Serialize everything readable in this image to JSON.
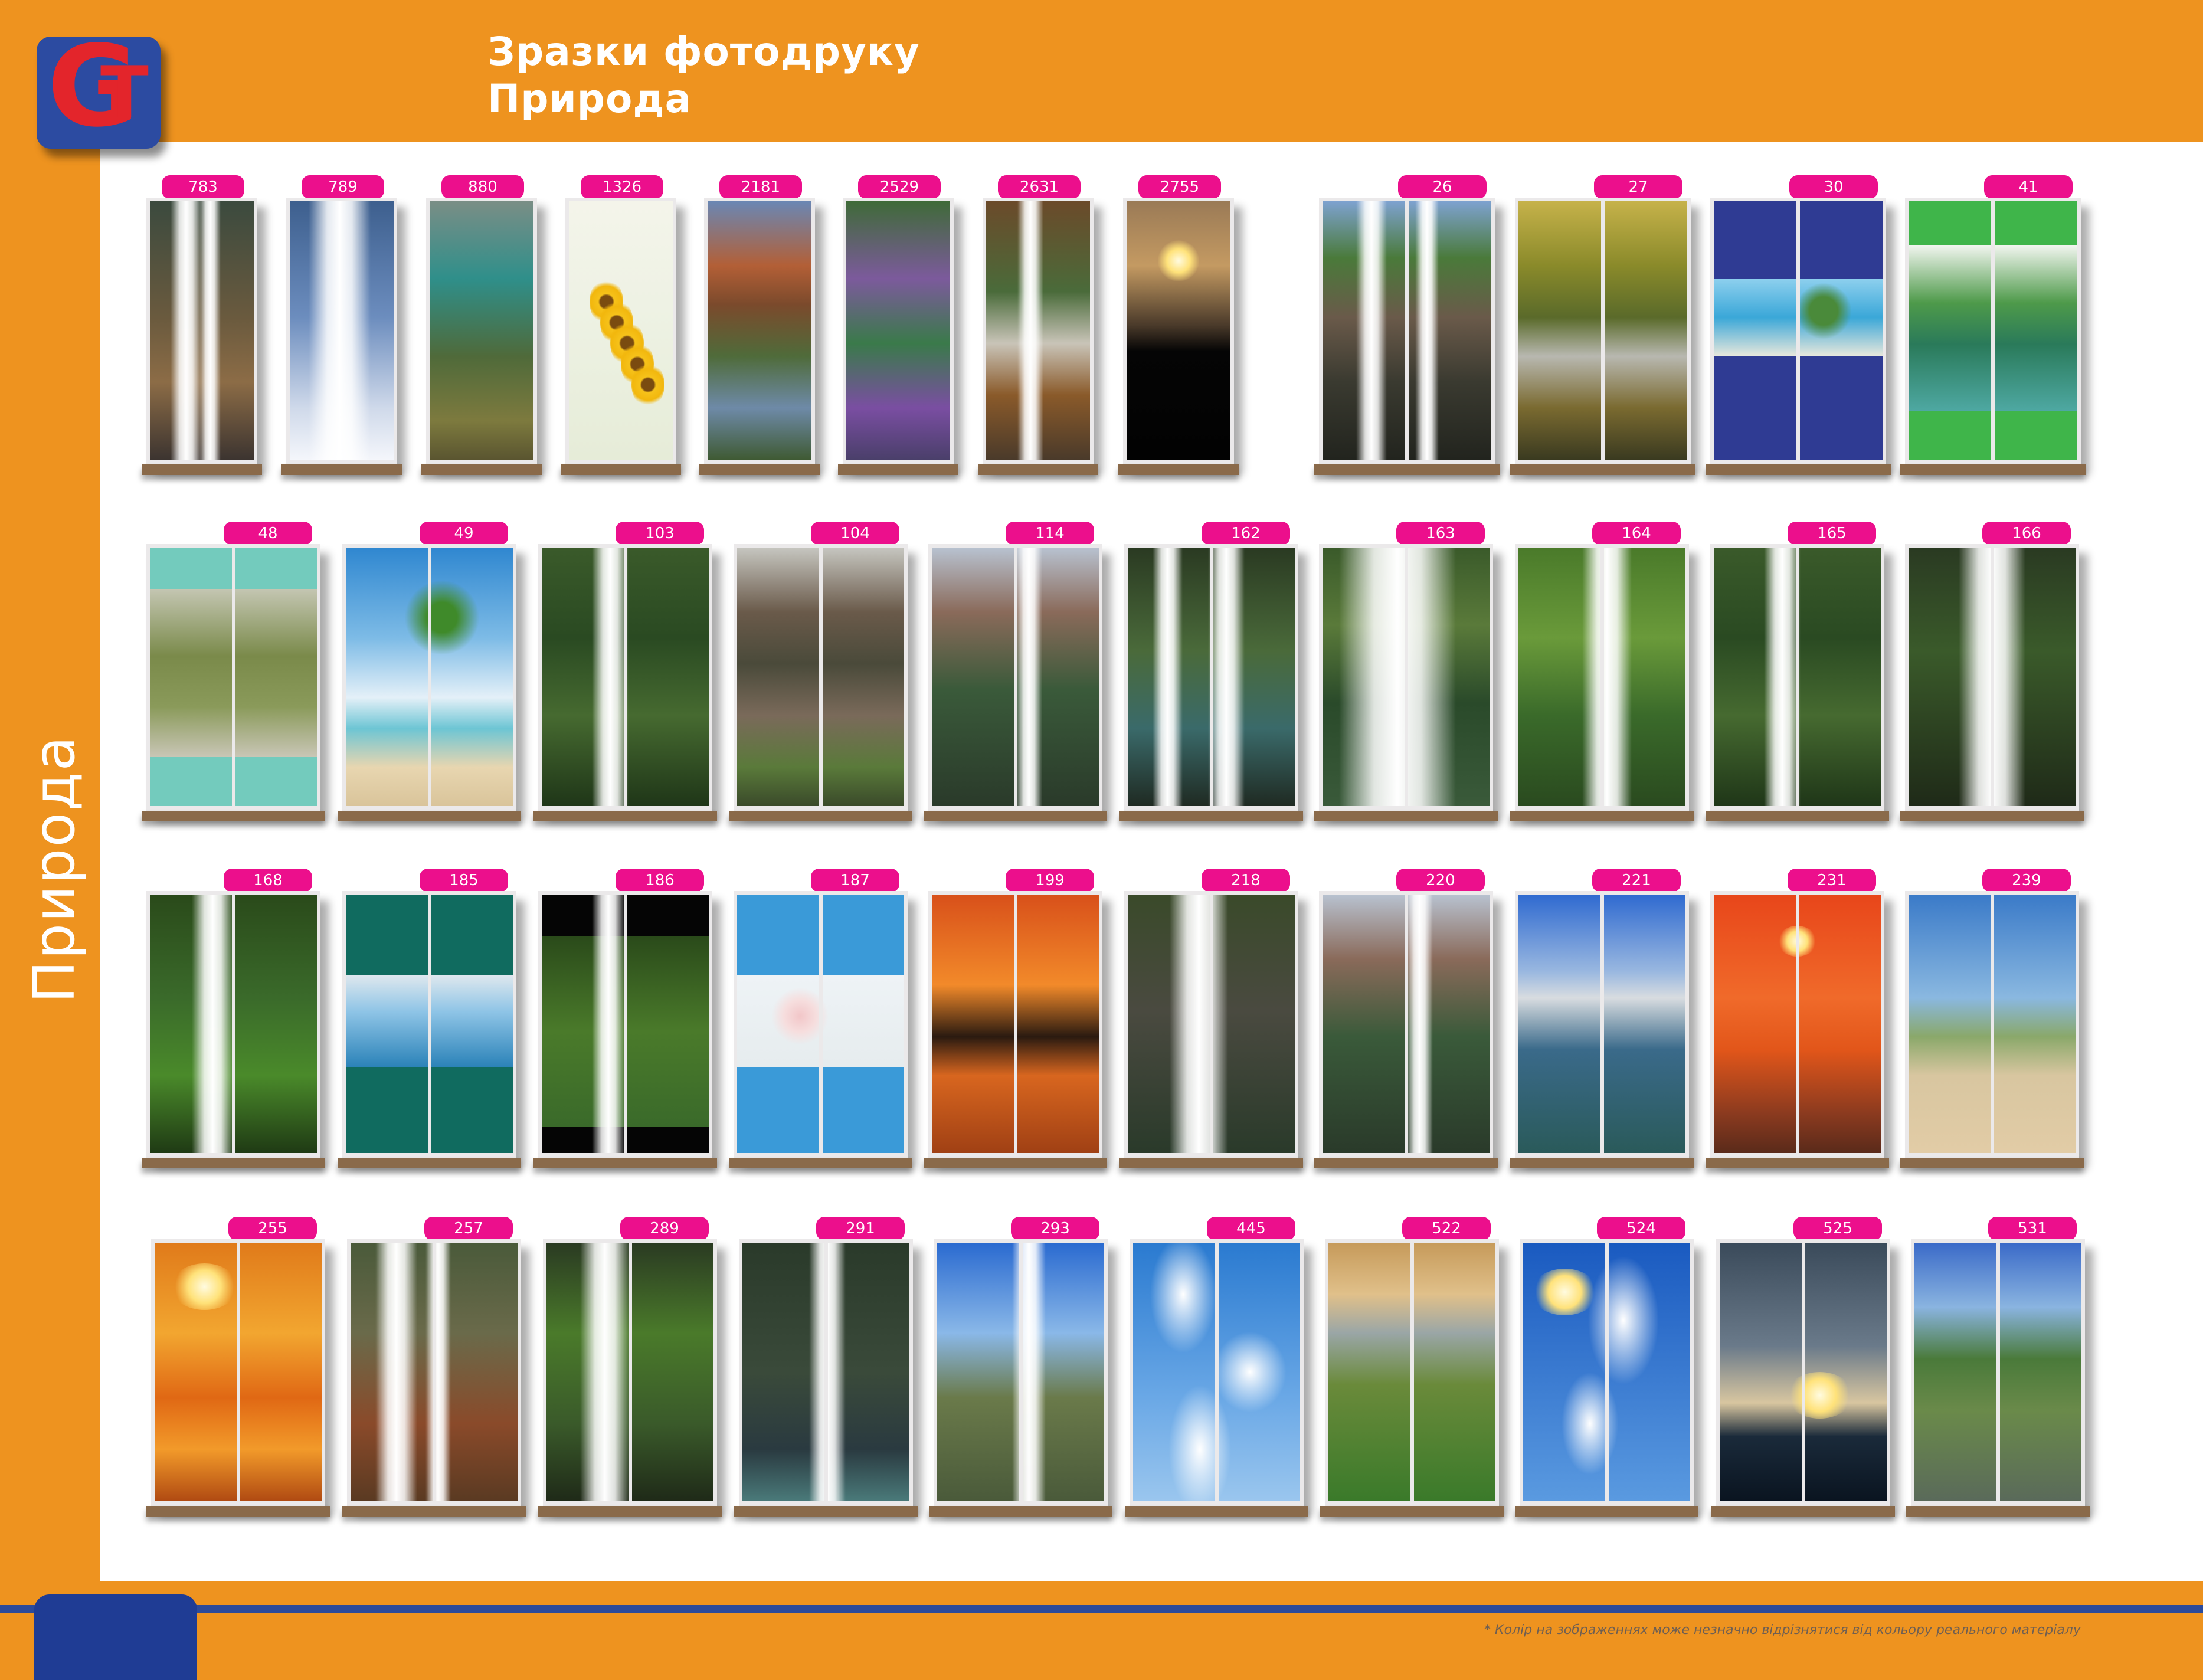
{
  "header": {
    "title_line1": "Зразки фотодруку",
    "title_line2": "Природа",
    "logo_text": "GT"
  },
  "side_title": "Природа",
  "footnote": "* Колір на зображеннях може незначно відрізнятися від кольору реального матеріалу",
  "rows": [
    {
      "items": [
        {
          "code": "783",
          "scene": "rock-waterfall"
        },
        {
          "code": "789",
          "scene": "snow-waterfall"
        },
        {
          "code": "880",
          "scene": "coast-cliff"
        },
        {
          "code": "1326",
          "scene": "sunflower-art"
        },
        {
          "code": "2181",
          "scene": "canyon-river"
        },
        {
          "code": "2529",
          "scene": "garden-pond"
        },
        {
          "code": "2631",
          "scene": "autumn-stream"
        },
        {
          "code": "2755",
          "scene": "dark-sunset"
        },
        {
          "code": "26",
          "scene": "mountain-falls"
        },
        {
          "code": "27",
          "scene": "forest-creek"
        },
        {
          "code": "30",
          "scene": "blue-beach-band"
        },
        {
          "code": "41",
          "scene": "green-lake-band"
        }
      ]
    },
    {
      "items": [
        {
          "code": "48",
          "scene": "teal-palm-band"
        },
        {
          "code": "49",
          "scene": "beach-palm"
        },
        {
          "code": "103",
          "scene": "jungle-waterfall"
        },
        {
          "code": "104",
          "scene": "forest-path"
        },
        {
          "code": "114",
          "scene": "canyon-waterfall"
        },
        {
          "code": "162",
          "scene": "double-waterfall"
        },
        {
          "code": "163",
          "scene": "wide-waterfall"
        },
        {
          "code": "164",
          "scene": "green-cascade"
        },
        {
          "code": "165",
          "scene": "jungle-waterfall"
        },
        {
          "code": "166",
          "scene": "tiered-waterfall"
        }
      ]
    },
    {
      "items": [
        {
          "code": "168",
          "scene": "mossy-cascade"
        },
        {
          "code": "185",
          "scene": "teal-tree-band"
        },
        {
          "code": "186",
          "scene": "black-cascade-band"
        },
        {
          "code": "187",
          "scene": "blue-blossom-band"
        },
        {
          "code": "199",
          "scene": "sunset-palms"
        },
        {
          "code": "218",
          "scene": "cliff-waterfall"
        },
        {
          "code": "220",
          "scene": "canyon-waterfall"
        },
        {
          "code": "221",
          "scene": "mountain-lake"
        },
        {
          "code": "231",
          "scene": "red-sunset-sea"
        },
        {
          "code": "239",
          "scene": "seashell-beach"
        }
      ]
    },
    {
      "items": [
        {
          "code": "255",
          "scene": "sunset-palm"
        },
        {
          "code": "257",
          "scene": "tall-waterfall"
        },
        {
          "code": "289",
          "scene": "fern-waterfall"
        },
        {
          "code": "291",
          "scene": "basalt-waterfall"
        },
        {
          "code": "293",
          "scene": "sky-waterfall"
        },
        {
          "code": "445",
          "scene": "cloudy-sky"
        },
        {
          "code": "522",
          "scene": "flower-coast"
        },
        {
          "code": "524",
          "scene": "sun-sky"
        },
        {
          "code": "525",
          "scene": "reed-sunset"
        },
        {
          "code": "531",
          "scene": "mountain-stream"
        }
      ]
    }
  ]
}
